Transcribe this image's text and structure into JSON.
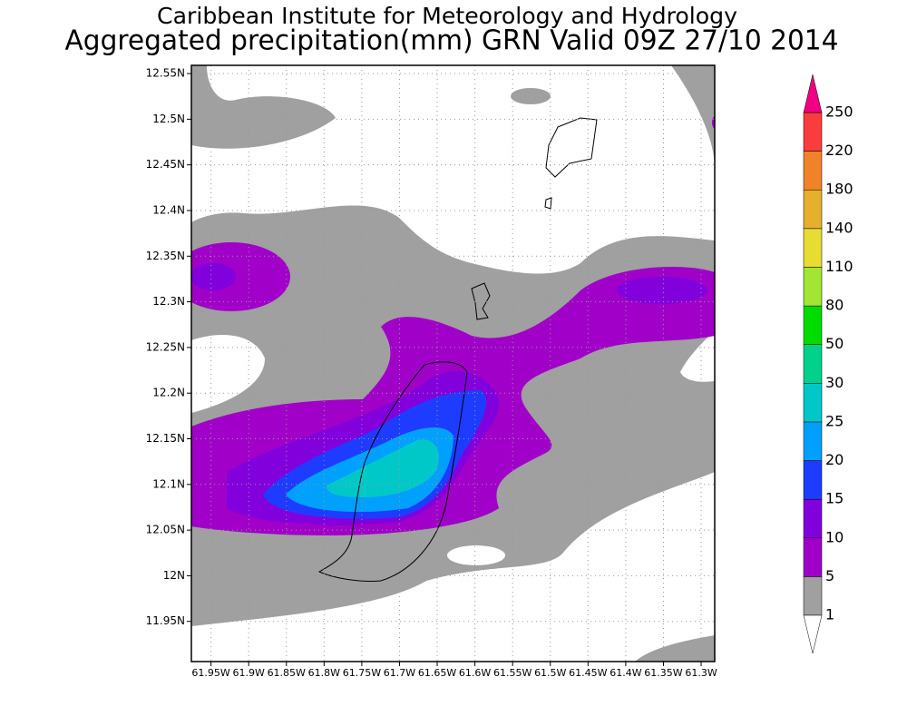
{
  "header": {
    "title": "Caribbean Institute for Meteorology and Hydrology",
    "subtitle": "Aggregated precipitation(mm) GRN Valid 09Z 27/10 2014"
  },
  "map": {
    "xlim": [
      61.976,
      61.282
    ],
    "ylim": [
      11.906,
      12.559
    ],
    "grid": true,
    "xticks": [
      {
        "value": 61.95,
        "label": "61.95W"
      },
      {
        "value": 61.9,
        "label": "61.9W"
      },
      {
        "value": 61.85,
        "label": "61.85W"
      },
      {
        "value": 61.8,
        "label": "61.8W"
      },
      {
        "value": 61.75,
        "label": "61.75W"
      },
      {
        "value": 61.7,
        "label": "61.7W"
      },
      {
        "value": 61.65,
        "label": "61.65W"
      },
      {
        "value": 61.6,
        "label": "61.6W"
      },
      {
        "value": 61.55,
        "label": "61.55W"
      },
      {
        "value": 61.5,
        "label": "61.5W"
      },
      {
        "value": 61.45,
        "label": "61.45W"
      },
      {
        "value": 61.4,
        "label": "61.4W"
      },
      {
        "value": 61.35,
        "label": "61.35W"
      },
      {
        "value": 61.3,
        "label": "61.3W"
      }
    ],
    "yticks": [
      {
        "value": 12.55,
        "label": "12.55N"
      },
      {
        "value": 12.5,
        "label": "12.5N"
      },
      {
        "value": 12.45,
        "label": "12.45N"
      },
      {
        "value": 12.4,
        "label": "12.4N"
      },
      {
        "value": 12.35,
        "label": "12.35N"
      },
      {
        "value": 12.3,
        "label": "12.3N"
      },
      {
        "value": 12.25,
        "label": "12.25N"
      },
      {
        "value": 12.2,
        "label": "12.2N"
      },
      {
        "value": 12.15,
        "label": "12.15N"
      },
      {
        "value": 12.1,
        "label": "12.1N"
      },
      {
        "value": 12.05,
        "label": "12.05N"
      },
      {
        "value": 12,
        "label": "12N"
      },
      {
        "value": 11.95,
        "label": "11.95N"
      }
    ]
  },
  "colorbar": {
    "levels": [
      1,
      5,
      10,
      15,
      20,
      25,
      30,
      50,
      80,
      110,
      140,
      180,
      220,
      250
    ],
    "colors": [
      "#ffffff",
      "#a0a0a0",
      "#a000c8",
      "#8200dc",
      "#1e3cff",
      "#00a0ff",
      "#00c8c8",
      "#00d28c",
      "#00dc00",
      "#a0e632",
      "#e6dc32",
      "#e6af2d",
      "#f08228",
      "#fa3c3c",
      "#f00082"
    ]
  }
}
